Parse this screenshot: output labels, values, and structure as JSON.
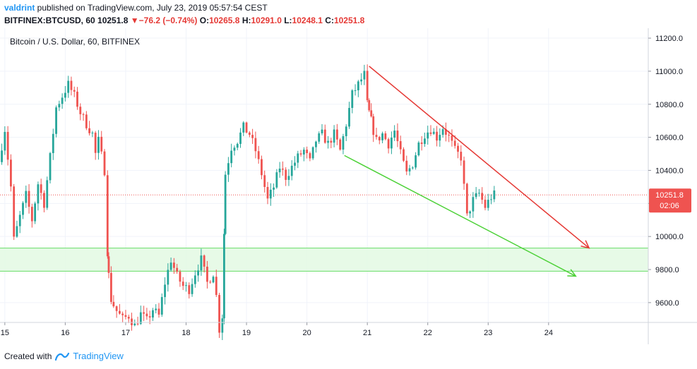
{
  "header": {
    "user": "valdrint",
    "published_text": " published on TradingView.com, July 23, 2019 05:57:54 CEST",
    "symbol": "BITFINEX:BTCUSD, 60",
    "last": "10251.8",
    "change": "−76.2 (−0.74%)",
    "open_label": "O:",
    "open": "10265.8",
    "high_label": "H:",
    "high": "10291.0",
    "low_label": "L:",
    "low": "10248.1",
    "close_label": "C:",
    "close": "10251.8"
  },
  "footer": {
    "created_with": "Created with",
    "brand": "TradingView"
  },
  "icons": {
    "down_arrow": "triangle-down-icon",
    "logo": "tradingview-logo-icon"
  },
  "colors": {
    "up": "#26a69a",
    "down": "#ef5350",
    "red_trendline": "#e53935",
    "green_trendline": "#4cd137",
    "zone_fill": "#e3f9e3",
    "zone_border": "#66dd66",
    "last_price_tag": "#ef5350"
  },
  "chart_data": {
    "type": "candlestick",
    "series_title": "Bitcoin / U.S. Dollar, 60, BITFINEX",
    "interval": "60",
    "ylim": [
      9480,
      11260
    ],
    "y_ticks": [
      "11200.0",
      "11000.0",
      "10800.0",
      "10600.0",
      "10400.0",
      "10200.0",
      "10000.0",
      "9800.0",
      "9600.0"
    ],
    "y_tick_values": [
      11200,
      11000,
      10800,
      10600,
      10400,
      10200,
      10000,
      9800,
      9600
    ],
    "x_ticks": [
      "15",
      "16",
      "17",
      "18",
      "19",
      "20",
      "21",
      "22",
      "23",
      "24"
    ],
    "x_tick_values": [
      15,
      16,
      17,
      18,
      19,
      20,
      21,
      22,
      23,
      24
    ],
    "xlim": [
      14.92,
      25.65
    ],
    "last_price": "10251.8",
    "countdown": "02:06",
    "support_zone": {
      "low": 9790,
      "high": 9930
    },
    "trendlines": [
      {
        "name": "red",
        "x1": 21.03,
        "y1": 11030,
        "x2": 24.67,
        "y2": 9930
      },
      {
        "name": "green",
        "x1": 20.62,
        "y1": 10490,
        "x2": 24.45,
        "y2": 9760
      }
    ],
    "path": [
      [
        14.95,
        10450
      ],
      [
        15.05,
        10650
      ],
      [
        15.15,
        10300
      ],
      [
        15.2,
        9980
      ],
      [
        15.3,
        10120
      ],
      [
        15.4,
        10250
      ],
      [
        15.5,
        10100
      ],
      [
        15.6,
        10320
      ],
      [
        15.7,
        10200
      ],
      [
        15.8,
        10480
      ],
      [
        15.9,
        10780
      ],
      [
        16.0,
        10850
      ],
      [
        16.1,
        10920
      ],
      [
        16.2,
        10850
      ],
      [
        16.3,
        10750
      ],
      [
        16.4,
        10680
      ],
      [
        16.5,
        10620
      ],
      [
        16.55,
        10500
      ],
      [
        16.6,
        10580
      ],
      [
        16.7,
        10400
      ],
      [
        16.72,
        9910
      ],
      [
        16.8,
        9620
      ],
      [
        16.9,
        9550
      ],
      [
        17.0,
        9500
      ],
      [
        17.1,
        9520
      ],
      [
        17.2,
        9460
      ],
      [
        17.3,
        9530
      ],
      [
        17.4,
        9490
      ],
      [
        17.5,
        9560
      ],
      [
        17.6,
        9520
      ],
      [
        17.7,
        9720
      ],
      [
        17.8,
        9860
      ],
      [
        17.9,
        9760
      ],
      [
        18.0,
        9700
      ],
      [
        18.1,
        9680
      ],
      [
        18.2,
        9780
      ],
      [
        18.3,
        9860
      ],
      [
        18.4,
        9720
      ],
      [
        18.5,
        9780
      ],
      [
        18.55,
        9640
      ],
      [
        18.6,
        9440
      ],
      [
        18.63,
        9520
      ],
      [
        18.65,
        10020
      ],
      [
        18.7,
        10380
      ],
      [
        18.8,
        10540
      ],
      [
        18.9,
        10580
      ],
      [
        19.0,
        10660
      ],
      [
        19.1,
        10620
      ],
      [
        19.2,
        10520
      ],
      [
        19.3,
        10380
      ],
      [
        19.4,
        10220
      ],
      [
        19.5,
        10300
      ],
      [
        19.6,
        10420
      ],
      [
        19.7,
        10360
      ],
      [
        19.8,
        10420
      ],
      [
        19.9,
        10480
      ],
      [
        20.0,
        10520
      ],
      [
        20.1,
        10450
      ],
      [
        20.2,
        10580
      ],
      [
        20.3,
        10620
      ],
      [
        20.4,
        10560
      ],
      [
        20.5,
        10620
      ],
      [
        20.6,
        10520
      ],
      [
        20.7,
        10680
      ],
      [
        20.8,
        10860
      ],
      [
        20.9,
        10920
      ],
      [
        21.0,
        10980
      ],
      [
        21.03,
        10800
      ],
      [
        21.1,
        10700
      ],
      [
        21.2,
        10580
      ],
      [
        21.3,
        10620
      ],
      [
        21.4,
        10560
      ],
      [
        21.5,
        10640
      ],
      [
        21.6,
        10500
      ],
      [
        21.7,
        10380
      ],
      [
        21.8,
        10440
      ],
      [
        21.9,
        10560
      ],
      [
        22.0,
        10620
      ],
      [
        22.1,
        10650
      ],
      [
        22.2,
        10600
      ],
      [
        22.3,
        10660
      ],
      [
        22.4,
        10600
      ],
      [
        22.5,
        10520
      ],
      [
        22.6,
        10480
      ],
      [
        22.7,
        10120
      ],
      [
        22.8,
        10220
      ],
      [
        22.9,
        10260
      ],
      [
        23.0,
        10180
      ],
      [
        23.1,
        10240
      ],
      [
        23.15,
        10252
      ]
    ]
  }
}
